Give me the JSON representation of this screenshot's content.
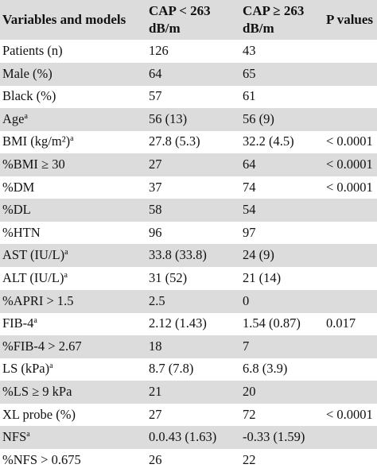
{
  "header": {
    "variables": "Variables and models",
    "cap_low_line1": "CAP < 263",
    "cap_low_line2": "dB/m",
    "cap_high_line1": "CAP ≥ 263",
    "cap_high_line2": "dB/m",
    "p_values": "P values"
  },
  "superscript": "a",
  "rows": [
    {
      "label": "Patients (n)",
      "sup": false,
      "low": "126",
      "high": "43",
      "p": ""
    },
    {
      "label": "Male (%)",
      "sup": false,
      "low": "64",
      "high": "65",
      "p": ""
    },
    {
      "label": "Black (%)",
      "sup": false,
      "low": "57",
      "high": "61",
      "p": ""
    },
    {
      "label": "Age",
      "sup": true,
      "low": "56 (13)",
      "high": "56 (9)",
      "p": ""
    },
    {
      "label": "BMI (kg/m²)",
      "sup": true,
      "low": "27.8 (5.3)",
      "high": "32.2 (4.5)",
      "p": "< 0.0001"
    },
    {
      "label": "%BMI ≥ 30",
      "sup": false,
      "low": "27",
      "high": "64",
      "p": "< 0.0001"
    },
    {
      "label": "%DM",
      "sup": false,
      "low": "37",
      "high": "74",
      "p": "< 0.0001"
    },
    {
      "label": "%DL",
      "sup": false,
      "low": "58",
      "high": "54",
      "p": ""
    },
    {
      "label": "%HTN",
      "sup": false,
      "low": "96",
      "high": "97",
      "p": ""
    },
    {
      "label": "AST (IU/L)",
      "sup": true,
      "low": "33.8 (33.8)",
      "high": "24 (9)",
      "p": ""
    },
    {
      "label": "ALT (IU/L)",
      "sup": true,
      "low": "31 (52)",
      "high": "21 (14)",
      "p": ""
    },
    {
      "label": "%APRI > 1.5",
      "sup": false,
      "low": "2.5",
      "high": "0",
      "p": ""
    },
    {
      "label": "FIB-4",
      "sup": true,
      "low": "2.12 (1.43)",
      "high": "1.54 (0.87)",
      "p": "0.017"
    },
    {
      "label": "%FIB-4 > 2.67",
      "sup": false,
      "low": "18",
      "high": "7",
      "p": ""
    },
    {
      "label": "LS (kPa)",
      "sup": true,
      "low": "8.7 (7.8)",
      "high": "6.8 (3.9)",
      "p": ""
    },
    {
      "label": "%LS ≥ 9 kPa",
      "sup": false,
      "low": "21",
      "high": "20",
      "p": ""
    },
    {
      "label": "XL probe (%)",
      "sup": false,
      "low": "27",
      "high": "72",
      "p": "< 0.0001"
    },
    {
      "label": "NFS",
      "sup": true,
      "low": "0.0.43 (1.63)",
      "high": "-0.33 (1.59)",
      "p": ""
    },
    {
      "label": "%NFS > 0.675",
      "sup": false,
      "low": "26",
      "high": "22",
      "p": ""
    }
  ]
}
